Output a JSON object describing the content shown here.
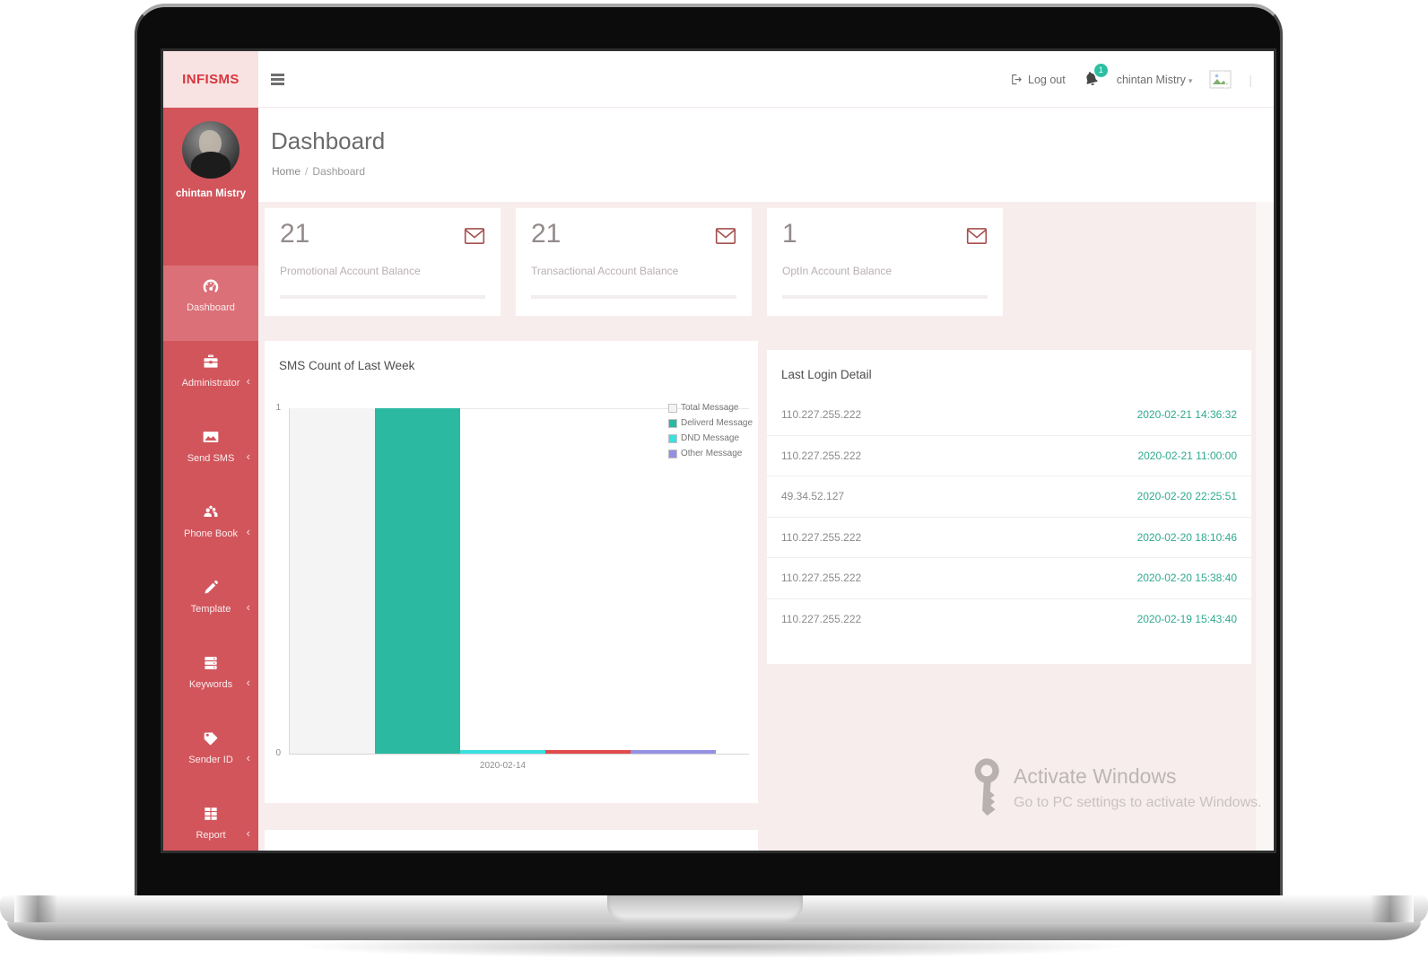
{
  "brand": {
    "logo": "INFISMS"
  },
  "topbar": {
    "logout_label": "Log out",
    "notification_count": "1",
    "user_menu_label": "chintan Mistry",
    "divider": "|"
  },
  "page": {
    "title": "Dashboard",
    "breadcrumb": [
      "Home",
      "Dashboard"
    ],
    "breadcrumb_separator": "/"
  },
  "sidebar": {
    "user_name": "chintan Mistry",
    "items": [
      {
        "label": "Dashboard",
        "icon": "gauge-icon",
        "active": true,
        "has_submenu": false
      },
      {
        "label": "Administrator",
        "icon": "briefcase-icon",
        "active": false,
        "has_submenu": true
      },
      {
        "label": "Send SMS",
        "icon": "envelope-icon",
        "active": false,
        "has_submenu": true
      },
      {
        "label": "Phone Book",
        "icon": "users-icon",
        "active": false,
        "has_submenu": true
      },
      {
        "label": "Template",
        "icon": "pencil-icon",
        "active": false,
        "has_submenu": true
      },
      {
        "label": "Keywords",
        "icon": "server-icon",
        "active": false,
        "has_submenu": true
      },
      {
        "label": "Sender ID",
        "icon": "tag-icon",
        "active": false,
        "has_submenu": true
      },
      {
        "label": "Report",
        "icon": "table-icon",
        "active": false,
        "has_submenu": true
      }
    ]
  },
  "cards": [
    {
      "value": "21",
      "label": "Promotional Account Balance",
      "icon": "envelope-outline-icon"
    },
    {
      "value": "21",
      "label": "Transactional Account Balance",
      "icon": "envelope-outline-icon"
    },
    {
      "value": "1",
      "label": "OptIn Account Balance",
      "icon": "envelope-outline-icon"
    }
  ],
  "chart_data": {
    "type": "bar",
    "title": "SMS Count of Last Week",
    "categories": [
      "2020-02-14"
    ],
    "series": [
      {
        "name": "Total Message",
        "color": "#f4f4f4",
        "values": [
          1
        ]
      },
      {
        "name": "Deliverd Message",
        "color": "#2bb9a2",
        "values": [
          1
        ]
      },
      {
        "name": "DND Message",
        "color": "#3ae0e0",
        "values": [
          0
        ]
      },
      {
        "name": "unlabeled-red-series",
        "color": "#e14b4b",
        "values": [
          0
        ]
      },
      {
        "name": "Other Message",
        "color": "#9490e2",
        "values": [
          0
        ]
      }
    ],
    "legend": [
      "Total Message",
      "Deliverd Message",
      "DND Message",
      "Other Message"
    ],
    "legend_position": "top-right",
    "xlabel": "",
    "ylabel": "",
    "ylim": [
      0,
      1
    ],
    "yticks": [
      0,
      1
    ],
    "grid": true
  },
  "login_panel": {
    "title": "Last Login Detail",
    "rows": [
      {
        "ip": "110.227.255.222",
        "time": "2020-02-21 14:36:32"
      },
      {
        "ip": "110.227.255.222",
        "time": "2020-02-21 11:00:00"
      },
      {
        "ip": "49.34.52.127",
        "time": "2020-02-20 22:25:51"
      },
      {
        "ip": "110.227.255.222",
        "time": "2020-02-20 18:10:46"
      },
      {
        "ip": "110.227.255.222",
        "time": "2020-02-20 15:38:40"
      },
      {
        "ip": "110.227.255.222",
        "time": "2020-02-19 15:43:40"
      }
    ]
  },
  "watermark": {
    "title": "Activate Windows",
    "subtitle": "Go to PC settings to activate Windows."
  },
  "colors": {
    "sidebar_red": "#d2555c",
    "sidebar_active_red": "#db7078",
    "logo_bg": "#f9e2e2",
    "logo_text": "#d8363e",
    "content_bg": "#f8eded",
    "accent_teal": "#2bb9a2",
    "timestamp_teal": "#2fa98f",
    "badge_green": "#2dbfa2",
    "card_icon_maroon": "#a4504e"
  }
}
